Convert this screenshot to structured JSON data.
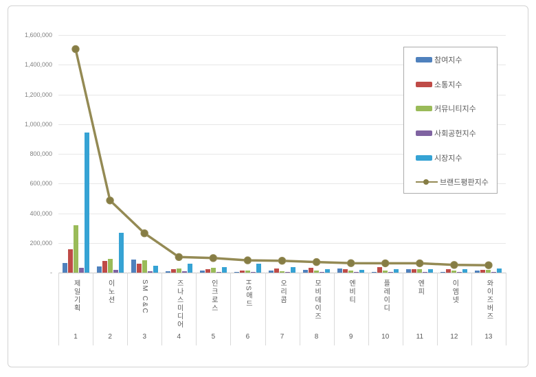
{
  "chart_data": {
    "type": "bar",
    "subtype": "grouped bars with overlaid line series",
    "title": "",
    "xlabel": "",
    "ylabel": "",
    "grid": true,
    "legend_position": "top-right box",
    "ylim": [
      0,
      1600000
    ],
    "ytick_step": 200000,
    "yticks": [
      {
        "value": 1600000,
        "label": "1,600,000"
      },
      {
        "value": 1400000,
        "label": "1,400,000"
      },
      {
        "value": 1200000,
        "label": "1,200,000"
      },
      {
        "value": 1000000,
        "label": "1,000,000"
      },
      {
        "value": 800000,
        "label": "800,000"
      },
      {
        "value": 600000,
        "label": "600,000"
      },
      {
        "value": 400000,
        "label": "400,000"
      },
      {
        "value": 200000,
        "label": "200,000"
      },
      {
        "value": 0,
        "label": "-"
      }
    ],
    "categories": [
      "제일기획",
      "이노션",
      "SM C&C",
      "즈나스미디어",
      "인크로스",
      "HS애드",
      "오리콤",
      "모비데이즈",
      "엔비티",
      "플레이디",
      "엔피",
      "이엠넷",
      "와이즈버즈"
    ],
    "ranks": [
      "1",
      "2",
      "3",
      "4",
      "5",
      "6",
      "7",
      "8",
      "9",
      "10",
      "11",
      "12",
      "13"
    ],
    "series": [
      {
        "name": "참여지수",
        "type": "bar",
        "color": "#4f81bd",
        "values": [
          65000,
          42000,
          90000,
          8000,
          13000,
          6000,
          13000,
          20000,
          28000,
          6000,
          21000,
          6000,
          15000
        ]
      },
      {
        "name": "소통지수",
        "type": "bar",
        "color": "#bf4b47",
        "values": [
          155000,
          80000,
          60000,
          23000,
          25000,
          13000,
          30000,
          32000,
          22000,
          36000,
          21000,
          22000,
          18000
        ]
      },
      {
        "name": "커뮤니티지수",
        "type": "bar",
        "color": "#9abb59",
        "values": [
          318000,
          93000,
          82000,
          28000,
          31000,
          15000,
          8000,
          14000,
          12000,
          13000,
          25000,
          16000,
          18000
        ]
      },
      {
        "name": "사회공헌지수",
        "type": "bar",
        "color": "#7f63a1",
        "values": [
          31000,
          20000,
          11000,
          9000,
          2000,
          5000,
          2000,
          3000,
          3000,
          2000,
          7000,
          2000,
          4000
        ]
      },
      {
        "name": "시장지수",
        "type": "bar",
        "color": "#36a3d4",
        "values": [
          945000,
          270000,
          46000,
          59000,
          36000,
          59000,
          35000,
          22000,
          20000,
          25000,
          22000,
          22000,
          28000
        ]
      },
      {
        "name": "브랜드평판지수",
        "type": "line",
        "color": "#948a54",
        "marker_color": "#867d45",
        "values": [
          1505000,
          486000,
          265000,
          105000,
          98000,
          83000,
          80000,
          71000,
          64000,
          63000,
          63000,
          52000,
          50000
        ]
      }
    ]
  }
}
